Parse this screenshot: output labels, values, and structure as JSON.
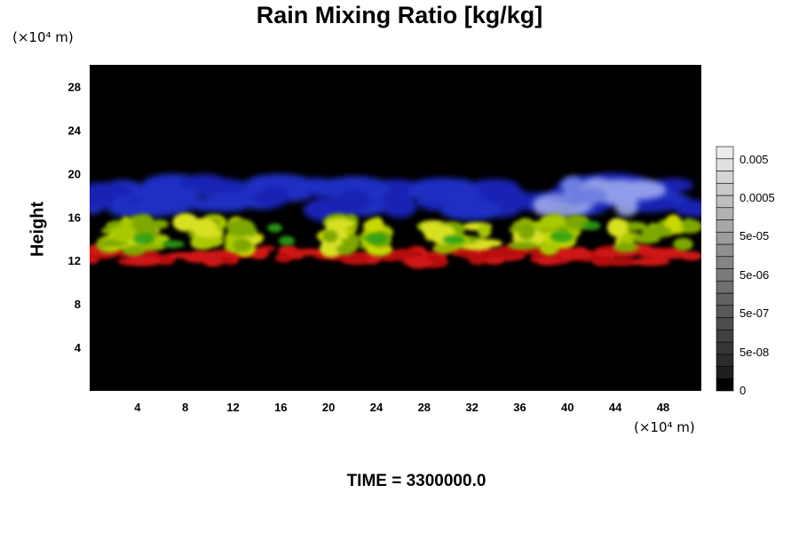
{
  "chart_data": {
    "type": "heatmap",
    "title": "Rain Mixing Ratio [kg/kg]",
    "ylabel": "Height",
    "x_unit": "(×10⁴ m)",
    "y_unit": "(×10⁴ m)",
    "xlim": [
      0,
      51.2
    ],
    "ylim": [
      0,
      30
    ],
    "x_ticks": [
      4,
      8,
      12,
      16,
      20,
      24,
      28,
      32,
      36,
      40,
      44,
      48
    ],
    "y_ticks": [
      4,
      8,
      12,
      16,
      20,
      24,
      28
    ],
    "footer": "TIME = 3300000.0",
    "colorbar": {
      "labels": [
        "0.005",
        "0.0005",
        "5e-05",
        "5e-06",
        "5e-07",
        "5e-08",
        "0"
      ],
      "levels": 20,
      "colors": [
        "#000000",
        "#ffffff"
      ]
    },
    "layers": [
      {
        "color": "#c81010",
        "y_range": [
          11.3,
          13.4
        ]
      },
      {
        "color": "#aac800",
        "y_range": [
          12.5,
          16.0
        ]
      },
      {
        "color": "#1020c0",
        "y_range": [
          16.0,
          19.5
        ]
      }
    ]
  }
}
